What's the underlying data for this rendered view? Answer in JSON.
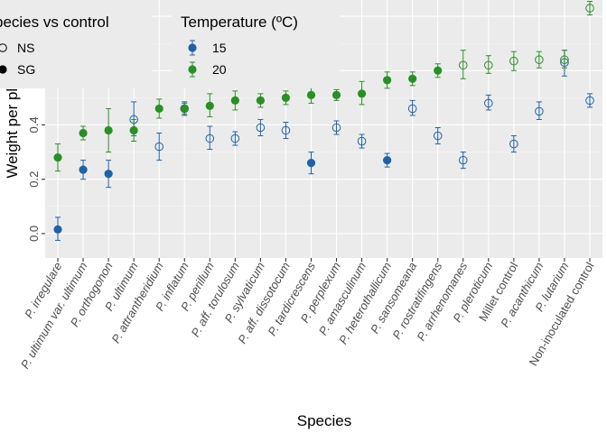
{
  "chart_data": {
    "type": "scatter",
    "xlabel": "Species",
    "ylabel": "Weight per pla",
    "ylim": [
      -0.09,
      0.86
    ],
    "yticks": [
      0.0,
      0.2,
      0.4
    ],
    "ytick_labels": [
      "0.0",
      "0.2",
      "0.4"
    ],
    "grid": true,
    "legend_placement": "top-left",
    "colors": {
      "15": "#1f62a8",
      "20": "#2a8f25"
    },
    "categories": [
      "P. irregulare",
      "P. ultimum var. ultimum",
      "P. orthogonon",
      "P. ultimum",
      "P. attrantheridium",
      "P. inflatum",
      "P. perillum",
      "P. aff. torulosum",
      "P. sylvaticum",
      "P. aff. dissotocum",
      "P. tardicrescens",
      "P. perplexum",
      "P. amasculinum",
      "P. heterothallicum",
      "P. sansomeana",
      "P. rostratifingens",
      "P. arrhenomanes",
      "P. pleroticum",
      "Millet control",
      "P. acanthicum",
      "P. lutarium",
      "Non-inoculated control"
    ],
    "italic_categories": [
      true,
      true,
      true,
      true,
      true,
      true,
      true,
      true,
      true,
      true,
      true,
      true,
      true,
      true,
      true,
      true,
      true,
      true,
      false,
      true,
      true,
      false
    ],
    "series": [
      {
        "name": "15",
        "points": [
          {
            "cat": 0,
            "y": 0.015,
            "lo": -0.025,
            "hi": 0.06,
            "significance": "SG"
          },
          {
            "cat": 1,
            "y": 0.235,
            "lo": 0.2,
            "hi": 0.27,
            "significance": "SG"
          },
          {
            "cat": 2,
            "y": 0.22,
            "lo": 0.17,
            "hi": 0.27,
            "significance": "SG"
          },
          {
            "cat": 3,
            "y": 0.42,
            "lo": 0.36,
            "hi": 0.485,
            "significance": "NS"
          },
          {
            "cat": 4,
            "y": 0.32,
            "lo": 0.27,
            "hi": 0.37,
            "significance": "NS"
          },
          {
            "cat": 5,
            "y": 0.46,
            "lo": 0.435,
            "hi": 0.485,
            "significance": "NS"
          },
          {
            "cat": 6,
            "y": 0.35,
            "lo": 0.31,
            "hi": 0.395,
            "significance": "NS"
          },
          {
            "cat": 7,
            "y": 0.35,
            "lo": 0.325,
            "hi": 0.375,
            "significance": "NS"
          },
          {
            "cat": 8,
            "y": 0.39,
            "lo": 0.36,
            "hi": 0.42,
            "significance": "NS"
          },
          {
            "cat": 9,
            "y": 0.38,
            "lo": 0.35,
            "hi": 0.41,
            "significance": "NS"
          },
          {
            "cat": 10,
            "y": 0.26,
            "lo": 0.22,
            "hi": 0.3,
            "significance": "SG"
          },
          {
            "cat": 11,
            "y": 0.39,
            "lo": 0.365,
            "hi": 0.415,
            "significance": "NS"
          },
          {
            "cat": 12,
            "y": 0.34,
            "lo": 0.315,
            "hi": 0.365,
            "significance": "NS"
          },
          {
            "cat": 13,
            "y": 0.27,
            "lo": 0.245,
            "hi": 0.295,
            "significance": "SG"
          },
          {
            "cat": 14,
            "y": 0.46,
            "lo": 0.435,
            "hi": 0.49,
            "significance": "NS"
          },
          {
            "cat": 15,
            "y": 0.36,
            "lo": 0.33,
            "hi": 0.39,
            "significance": "NS"
          },
          {
            "cat": 16,
            "y": 0.27,
            "lo": 0.24,
            "hi": 0.3,
            "significance": "NS"
          },
          {
            "cat": 17,
            "y": 0.48,
            "lo": 0.455,
            "hi": 0.51,
            "significance": "NS"
          },
          {
            "cat": 18,
            "y": 0.33,
            "lo": 0.3,
            "hi": 0.36,
            "significance": "NS"
          },
          {
            "cat": 19,
            "y": 0.45,
            "lo": 0.42,
            "hi": 0.485,
            "significance": "NS"
          },
          {
            "cat": 20,
            "y": 0.63,
            "lo": 0.58,
            "hi": 0.675,
            "significance": "NS"
          },
          {
            "cat": 21,
            "y": 0.49,
            "lo": 0.465,
            "hi": 0.515,
            "significance": "NS"
          }
        ]
      },
      {
        "name": "20",
        "points": [
          {
            "cat": 0,
            "y": 0.28,
            "lo": 0.23,
            "hi": 0.33,
            "significance": "SG"
          },
          {
            "cat": 1,
            "y": 0.37,
            "lo": 0.345,
            "hi": 0.395,
            "significance": "SG"
          },
          {
            "cat": 2,
            "y": 0.38,
            "lo": 0.3,
            "hi": 0.46,
            "significance": "SG"
          },
          {
            "cat": 3,
            "y": 0.38,
            "lo": 0.34,
            "hi": 0.42,
            "significance": "SG"
          },
          {
            "cat": 4,
            "y": 0.46,
            "lo": 0.425,
            "hi": 0.495,
            "significance": "SG"
          },
          {
            "cat": 5,
            "y": 0.46,
            "lo": 0.44,
            "hi": 0.48,
            "significance": "SG"
          },
          {
            "cat": 6,
            "y": 0.47,
            "lo": 0.43,
            "hi": 0.515,
            "significance": "SG"
          },
          {
            "cat": 7,
            "y": 0.49,
            "lo": 0.455,
            "hi": 0.525,
            "significance": "SG"
          },
          {
            "cat": 8,
            "y": 0.49,
            "lo": 0.465,
            "hi": 0.515,
            "significance": "SG"
          },
          {
            "cat": 9,
            "y": 0.5,
            "lo": 0.475,
            "hi": 0.525,
            "significance": "SG"
          },
          {
            "cat": 10,
            "y": 0.51,
            "lo": 0.48,
            "hi": 0.54,
            "significance": "SG"
          },
          {
            "cat": 11,
            "y": 0.51,
            "lo": 0.49,
            "hi": 0.53,
            "significance": "SG"
          },
          {
            "cat": 12,
            "y": 0.515,
            "lo": 0.475,
            "hi": 0.56,
            "significance": "SG"
          },
          {
            "cat": 13,
            "y": 0.565,
            "lo": 0.535,
            "hi": 0.595,
            "significance": "SG"
          },
          {
            "cat": 14,
            "y": 0.57,
            "lo": 0.545,
            "hi": 0.595,
            "significance": "SG"
          },
          {
            "cat": 15,
            "y": 0.6,
            "lo": 0.575,
            "hi": 0.625,
            "significance": "SG"
          },
          {
            "cat": 16,
            "y": 0.62,
            "lo": 0.57,
            "hi": 0.675,
            "significance": "NS"
          },
          {
            "cat": 17,
            "y": 0.62,
            "lo": 0.59,
            "hi": 0.655,
            "significance": "NS"
          },
          {
            "cat": 18,
            "y": 0.635,
            "lo": 0.6,
            "hi": 0.67,
            "significance": "NS"
          },
          {
            "cat": 19,
            "y": 0.64,
            "lo": 0.61,
            "hi": 0.67,
            "significance": "NS"
          },
          {
            "cat": 20,
            "y": 0.64,
            "lo": 0.61,
            "hi": 0.675,
            "significance": "NS"
          },
          {
            "cat": 21,
            "y": 0.83,
            "lo": 0.805,
            "hi": 0.855,
            "significance": "NS"
          }
        ]
      }
    ],
    "legends": [
      {
        "title": "pecies vs control",
        "items": [
          {
            "label": "NS",
            "shape": "open-circle"
          },
          {
            "label": "SG",
            "shape": "filled-circle"
          }
        ]
      },
      {
        "title": "Temperature (ºC)",
        "items": [
          {
            "label": "15",
            "color": "#1f62a8"
          },
          {
            "label": "20",
            "color": "#2a8f25"
          }
        ]
      }
    ]
  }
}
